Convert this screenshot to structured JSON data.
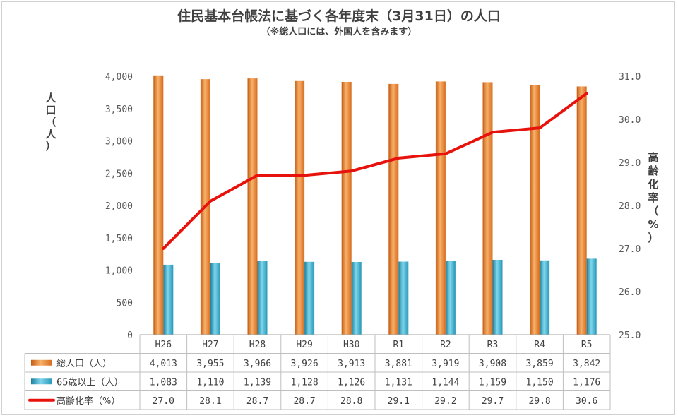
{
  "chart_data": {
    "type": "bar",
    "title": "住民基本台帳法に基づく各年度末（3月31日）の人口",
    "subtitle": "（※総人口には、外国人を含みます）",
    "categories": [
      "H26",
      "H27",
      "H28",
      "H29",
      "H30",
      "R1",
      "R2",
      "R3",
      "R4",
      "R5"
    ],
    "series": [
      {
        "name": "総人口（人）",
        "axis": "left",
        "type": "bar",
        "color": "#ED7D31",
        "values": [
          4013,
          3955,
          3966,
          3926,
          3913,
          3881,
          3919,
          3908,
          3859,
          3842
        ],
        "labels": [
          "4,013",
          "3,955",
          "3,966",
          "3,926",
          "3,913",
          "3,881",
          "3,919",
          "3,908",
          "3,859",
          "3,842"
        ]
      },
      {
        "name": "65歳以上（人）",
        "axis": "left",
        "type": "bar",
        "color": "#2FA8C9",
        "values": [
          1083,
          1110,
          1139,
          1128,
          1126,
          1131,
          1144,
          1159,
          1150,
          1176
        ],
        "labels": [
          "1,083",
          "1,110",
          "1,139",
          "1,128",
          "1,126",
          "1,131",
          "1,144",
          "1,159",
          "1,150",
          "1,176"
        ]
      },
      {
        "name": "高齢化率（%）",
        "axis": "right",
        "type": "line",
        "color": "#E8120C",
        "values": [
          27.0,
          28.1,
          28.7,
          28.7,
          28.8,
          29.1,
          29.2,
          29.7,
          29.8,
          30.6
        ],
        "labels": [
          "27.0",
          "28.1",
          "28.7",
          "28.7",
          "28.8",
          "29.1",
          "29.2",
          "29.7",
          "29.8",
          "30.6"
        ]
      }
    ],
    "y_left": {
      "label": "人口（人）",
      "ylim": [
        0,
        4000
      ],
      "ticks": [
        0,
        500,
        1000,
        1500,
        2000,
        2500,
        3000,
        3500,
        4000
      ],
      "tick_labels": [
        "0",
        "500",
        "1,000",
        "1,500",
        "2,000",
        "2,500",
        "3,000",
        "3,500",
        "4,000"
      ]
    },
    "y_right": {
      "label": "高齢化率（%）",
      "ylim": [
        25.0,
        31.0
      ],
      "ticks": [
        25.0,
        26.0,
        27.0,
        28.0,
        29.0,
        30.0,
        31.0
      ],
      "tick_labels": [
        "25.0",
        "26.0",
        "27.0",
        "28.0",
        "29.0",
        "30.0",
        "31.0"
      ]
    },
    "grid": false,
    "legend": "data-table-bottom"
  }
}
